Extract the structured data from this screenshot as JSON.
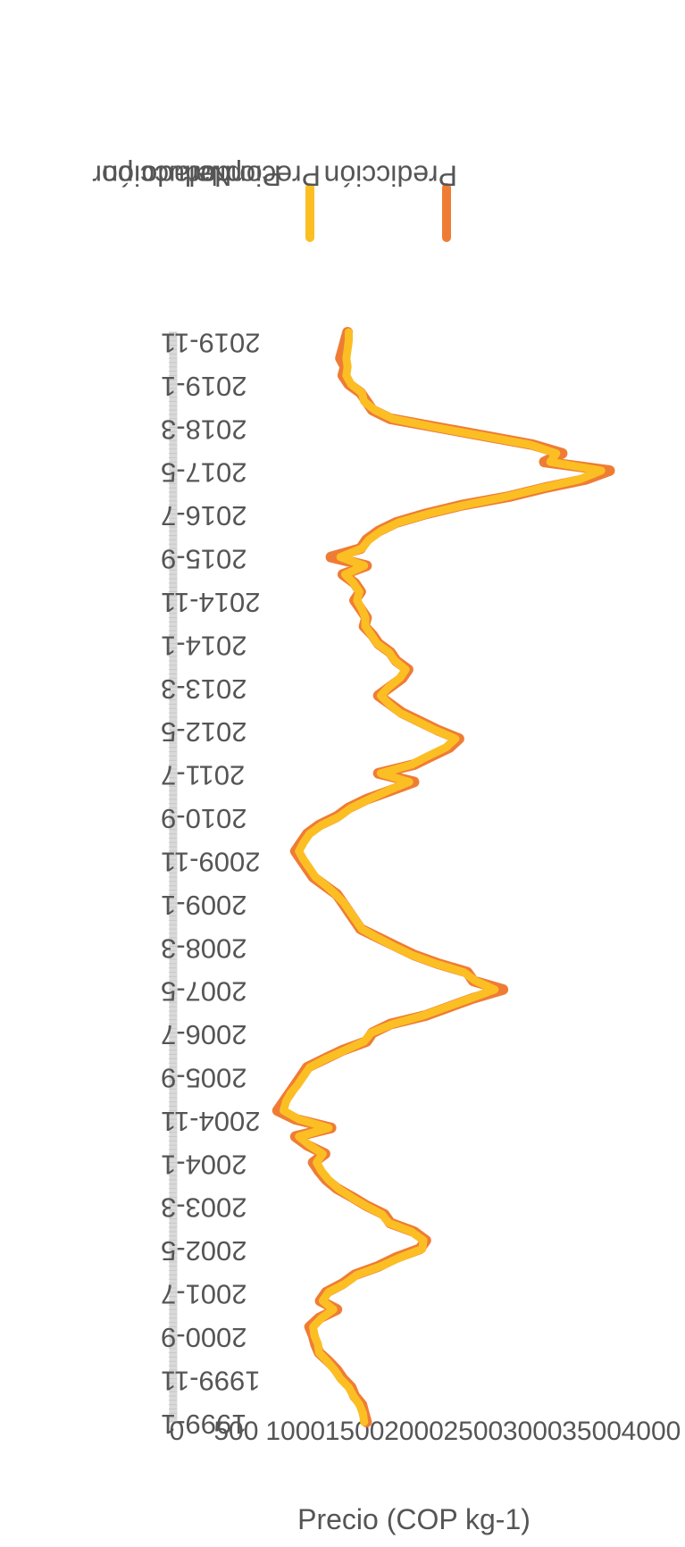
{
  "chart_data": {
    "type": "line",
    "ylabel": "Precio (COP kg-1)",
    "ylim": [
      0,
      4000
    ],
    "yticks": [
      0,
      500,
      1000,
      1500,
      2000,
      2500,
      3000,
      3500,
      4000
    ],
    "x_tick_labels": [
      "1999-1",
      "1999-11",
      "2000-9",
      "2001-7",
      "2002-5",
      "2003-3",
      "2004-1",
      "2004-11",
      "2005-9",
      "2006-7",
      "2007-5",
      "2008-3",
      "2009-1",
      "2009-11",
      "2010-9",
      "2011-7",
      "2012-5",
      "2013-3",
      "2014-1",
      "2014-11",
      "2015-9",
      "2016-7",
      "2017-5",
      "2018-3",
      "2019-1",
      "2019-11"
    ],
    "legend": {
      "placement": "top-right"
    },
    "series": [
      {
        "name": "Predicción",
        "color": "#ef7c35",
        "points": [
          [
            "1999-1",
            1600
          ],
          [
            "1999-3",
            1580
          ],
          [
            "1999-5",
            1560
          ],
          [
            "1999-7",
            1500
          ],
          [
            "1999-9",
            1470
          ],
          [
            "1999-11",
            1400
          ],
          [
            "2000-1",
            1350
          ],
          [
            "2000-3",
            1280
          ],
          [
            "2000-5",
            1200
          ],
          [
            "2000-7",
            1170
          ],
          [
            "2000-9",
            1150
          ],
          [
            "2000-11",
            1120
          ],
          [
            "2001-1",
            1200
          ],
          [
            "2001-3",
            1350
          ],
          [
            "2001-5",
            1210
          ],
          [
            "2001-7",
            1260
          ],
          [
            "2001-9",
            1400
          ],
          [
            "2001-11",
            1500
          ],
          [
            "2002-1",
            1700
          ],
          [
            "2002-3",
            1850
          ],
          [
            "2002-5",
            2050
          ],
          [
            "2002-7",
            2100
          ],
          [
            "2002-9",
            2000
          ],
          [
            "2002-11",
            1800
          ],
          [
            "2003-1",
            1750
          ],
          [
            "2003-3",
            1600
          ],
          [
            "2003-5",
            1480
          ],
          [
            "2003-7",
            1350
          ],
          [
            "2003-9",
            1260
          ],
          [
            "2003-11",
            1200
          ],
          [
            "2004-1",
            1150
          ],
          [
            "2004-3",
            1250
          ],
          [
            "2004-5",
            1100
          ],
          [
            "2004-7",
            1000
          ],
          [
            "2004-9",
            1300
          ],
          [
            "2004-11",
            1000
          ],
          [
            "2005-1",
            850
          ],
          [
            "2005-3",
            900
          ],
          [
            "2005-5",
            950
          ],
          [
            "2005-7",
            1000
          ],
          [
            "2005-9",
            1050
          ],
          [
            "2005-11",
            1100
          ],
          [
            "2006-1",
            1250
          ],
          [
            "2006-3",
            1400
          ],
          [
            "2006-5",
            1600
          ],
          [
            "2006-7",
            1650
          ],
          [
            "2006-9",
            1800
          ],
          [
            "2006-11",
            2100
          ],
          [
            "2007-1",
            2300
          ],
          [
            "2007-3",
            2500
          ],
          [
            "2007-5",
            2750
          ],
          [
            "2007-7",
            2500
          ],
          [
            "2007-9",
            2450
          ],
          [
            "2007-11",
            2200
          ],
          [
            "2008-1",
            2000
          ],
          [
            "2008-3",
            1850
          ],
          [
            "2008-5",
            1700
          ],
          [
            "2008-7",
            1550
          ],
          [
            "2008-9",
            1500
          ],
          [
            "2008-11",
            1450
          ],
          [
            "2009-1",
            1400
          ],
          [
            "2009-3",
            1350
          ],
          [
            "2009-5",
            1250
          ],
          [
            "2009-7",
            1150
          ],
          [
            "2009-9",
            1100
          ],
          [
            "2009-11",
            1050
          ],
          [
            "2010-1",
            1000
          ],
          [
            "2010-3",
            1050
          ],
          [
            "2010-5",
            1100
          ],
          [
            "2010-7",
            1200
          ],
          [
            "2010-9",
            1350
          ],
          [
            "2010-11",
            1450
          ],
          [
            "2011-1",
            1600
          ],
          [
            "2011-3",
            1800
          ],
          [
            "2011-5",
            2000
          ],
          [
            "2011-7",
            1700
          ],
          [
            "2011-9",
            2000
          ],
          [
            "2011-11",
            2150
          ],
          [
            "2012-1",
            2300
          ],
          [
            "2012-3",
            2380
          ],
          [
            "2012-5",
            2200
          ],
          [
            "2012-7",
            2050
          ],
          [
            "2012-9",
            1900
          ],
          [
            "2012-11",
            1800
          ],
          [
            "2013-1",
            1700
          ],
          [
            "2013-3",
            1800
          ],
          [
            "2013-5",
            1900
          ],
          [
            "2013-7",
            1950
          ],
          [
            "2013-9",
            1850
          ],
          [
            "2013-11",
            1800
          ],
          [
            "2014-1",
            1700
          ],
          [
            "2014-3",
            1650
          ],
          [
            "2014-5",
            1580
          ],
          [
            "2014-7",
            1600
          ],
          [
            "2014-9",
            1550
          ],
          [
            "2014-11",
            1500
          ],
          [
            "2015-1",
            1550
          ],
          [
            "2015-3",
            1500
          ],
          [
            "2015-5",
            1400
          ],
          [
            "2015-7",
            1600
          ],
          [
            "2015-9",
            1300
          ],
          [
            "2015-11",
            1550
          ],
          [
            "2016-1",
            1600
          ],
          [
            "2016-3",
            1700
          ],
          [
            "2016-5",
            1850
          ],
          [
            "2016-7",
            2100
          ],
          [
            "2016-9",
            2400
          ],
          [
            "2016-11",
            2800
          ],
          [
            "2017-1",
            3100
          ],
          [
            "2017-3",
            3450
          ],
          [
            "2017-5",
            3650
          ],
          [
            "2017-7",
            3100
          ],
          [
            "2017-9",
            3250
          ],
          [
            "2017-11",
            3000
          ],
          [
            "2018-1",
            2600
          ],
          [
            "2018-3",
            2200
          ],
          [
            "2018-5",
            1800
          ],
          [
            "2018-7",
            1650
          ],
          [
            "2018-9",
            1600
          ],
          [
            "2018-11",
            1550
          ],
          [
            "2019-1",
            1450
          ],
          [
            "2019-3",
            1400
          ],
          [
            "2019-5",
            1420
          ],
          [
            "2019-7",
            1380
          ],
          [
            "2019-9",
            1400
          ],
          [
            "2019-11",
            1420
          ],
          [
            "2020-1",
            1440
          ]
        ]
      },
      {
        "name": "Precio Nal. Ponderado por producción",
        "color": "#fbbf24",
        "points": [
          [
            "1999-1",
            1580
          ],
          [
            "1999-3",
            1570
          ],
          [
            "1999-5",
            1540
          ],
          [
            "1999-7",
            1490
          ],
          [
            "1999-9",
            1450
          ],
          [
            "1999-11",
            1380
          ],
          [
            "2000-1",
            1330
          ],
          [
            "2000-3",
            1270
          ],
          [
            "2000-5",
            1200
          ],
          [
            "2000-7",
            1190
          ],
          [
            "2000-9",
            1160
          ],
          [
            "2000-11",
            1150
          ],
          [
            "2001-1",
            1220
          ],
          [
            "2001-3",
            1320
          ],
          [
            "2001-5",
            1230
          ],
          [
            "2001-7",
            1280
          ],
          [
            "2001-9",
            1420
          ],
          [
            "2001-11",
            1520
          ],
          [
            "2002-1",
            1720
          ],
          [
            "2002-3",
            1880
          ],
          [
            "2002-5",
            2070
          ],
          [
            "2002-7",
            2080
          ],
          [
            "2002-9",
            1980
          ],
          [
            "2002-11",
            1790
          ],
          [
            "2003-1",
            1730
          ],
          [
            "2003-3",
            1590
          ],
          [
            "2003-5",
            1470
          ],
          [
            "2003-7",
            1360
          ],
          [
            "2003-9",
            1280
          ],
          [
            "2003-11",
            1220
          ],
          [
            "2004-1",
            1180
          ],
          [
            "2004-3",
            1230
          ],
          [
            "2004-5",
            1120
          ],
          [
            "2004-7",
            1030
          ],
          [
            "2004-9",
            1280
          ],
          [
            "2004-11",
            1030
          ],
          [
            "2005-1",
            900
          ],
          [
            "2005-3",
            920
          ],
          [
            "2005-5",
            960
          ],
          [
            "2005-7",
            1020
          ],
          [
            "2005-9",
            1070
          ],
          [
            "2005-11",
            1120
          ],
          [
            "2006-1",
            1260
          ],
          [
            "2006-3",
            1420
          ],
          [
            "2006-5",
            1580
          ],
          [
            "2006-7",
            1640
          ],
          [
            "2006-9",
            1820
          ],
          [
            "2006-11",
            2080
          ],
          [
            "2007-1",
            2280
          ],
          [
            "2007-3",
            2480
          ],
          [
            "2007-5",
            2680
          ],
          [
            "2007-7",
            2520
          ],
          [
            "2007-9",
            2420
          ],
          [
            "2007-11",
            2180
          ],
          [
            "2008-1",
            1980
          ],
          [
            "2008-3",
            1830
          ],
          [
            "2008-5",
            1690
          ],
          [
            "2008-7",
            1560
          ],
          [
            "2008-9",
            1510
          ],
          [
            "2008-11",
            1460
          ],
          [
            "2009-1",
            1410
          ],
          [
            "2009-3",
            1340
          ],
          [
            "2009-5",
            1260
          ],
          [
            "2009-7",
            1170
          ],
          [
            "2009-9",
            1120
          ],
          [
            "2009-11",
            1070
          ],
          [
            "2010-1",
            1030
          ],
          [
            "2010-3",
            1070
          ],
          [
            "2010-5",
            1120
          ],
          [
            "2010-7",
            1220
          ],
          [
            "2010-9",
            1370
          ],
          [
            "2010-11",
            1470
          ],
          [
            "2011-1",
            1620
          ],
          [
            "2011-3",
            1780
          ],
          [
            "2011-5",
            1960
          ],
          [
            "2011-7",
            1720
          ],
          [
            "2011-9",
            1980
          ],
          [
            "2011-11",
            2120
          ],
          [
            "2012-1",
            2270
          ],
          [
            "2012-3",
            2350
          ],
          [
            "2012-5",
            2180
          ],
          [
            "2012-7",
            2030
          ],
          [
            "2012-9",
            1880
          ],
          [
            "2012-11",
            1790
          ],
          [
            "2013-1",
            1720
          ],
          [
            "2013-3",
            1790
          ],
          [
            "2013-5",
            1880
          ],
          [
            "2013-7",
            1930
          ],
          [
            "2013-9",
            1840
          ],
          [
            "2013-11",
            1790
          ],
          [
            "2014-1",
            1690
          ],
          [
            "2014-3",
            1640
          ],
          [
            "2014-5",
            1590
          ],
          [
            "2014-7",
            1590
          ],
          [
            "2014-9",
            1560
          ],
          [
            "2014-11",
            1520
          ],
          [
            "2015-1",
            1540
          ],
          [
            "2015-3",
            1490
          ],
          [
            "2015-5",
            1420
          ],
          [
            "2015-7",
            1580
          ],
          [
            "2015-9",
            1380
          ],
          [
            "2015-11",
            1560
          ],
          [
            "2016-1",
            1620
          ],
          [
            "2016-3",
            1720
          ],
          [
            "2016-5",
            1870
          ],
          [
            "2016-7",
            2120
          ],
          [
            "2016-9",
            2420
          ],
          [
            "2016-11",
            2780
          ],
          [
            "2017-1",
            3080
          ],
          [
            "2017-3",
            3400
          ],
          [
            "2017-5",
            3580
          ],
          [
            "2017-7",
            3150
          ],
          [
            "2017-9",
            3200
          ],
          [
            "2017-11",
            2980
          ],
          [
            "2018-1",
            2580
          ],
          [
            "2018-3",
            2180
          ],
          [
            "2018-5",
            1820
          ],
          [
            "2018-7",
            1670
          ],
          [
            "2018-9",
            1580
          ],
          [
            "2018-11",
            1560
          ],
          [
            "2019-1",
            1470
          ],
          [
            "2019-3",
            1430
          ],
          [
            "2019-5",
            1440
          ],
          [
            "2019-7",
            1430
          ],
          [
            "2019-9",
            1440
          ],
          [
            "2019-11",
            1450
          ],
          [
            "2020-1",
            1450
          ]
        ]
      }
    ]
  }
}
